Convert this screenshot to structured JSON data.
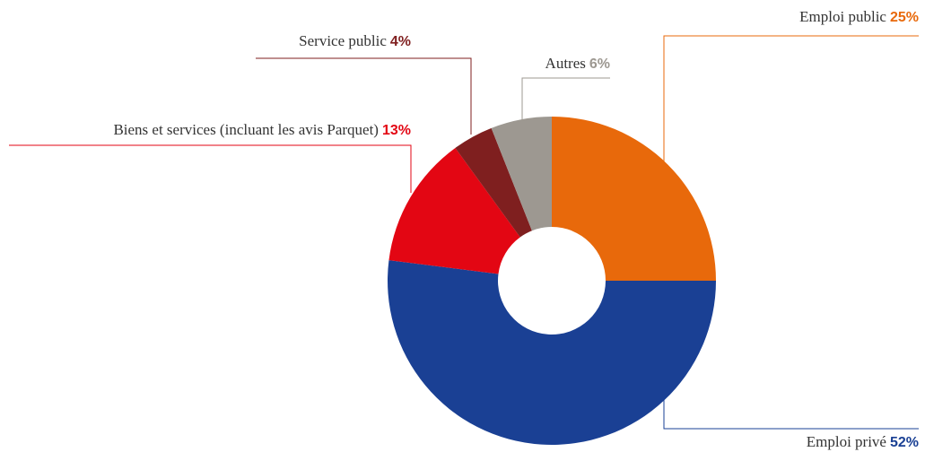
{
  "chart_data": {
    "type": "donut",
    "categories": [
      "Emploi public",
      "Emploi privé",
      "Biens et services (incluant les avis Parquet)",
      "Service public",
      "Autres"
    ],
    "values": [
      25,
      52,
      13,
      4,
      6
    ],
    "value_labels": [
      "25%",
      "52%",
      "13%",
      "4%",
      "6%"
    ],
    "colors": [
      "#e8690b",
      "#1a4094",
      "#e30613",
      "#7f1f1f",
      "#9d9891"
    ]
  }
}
